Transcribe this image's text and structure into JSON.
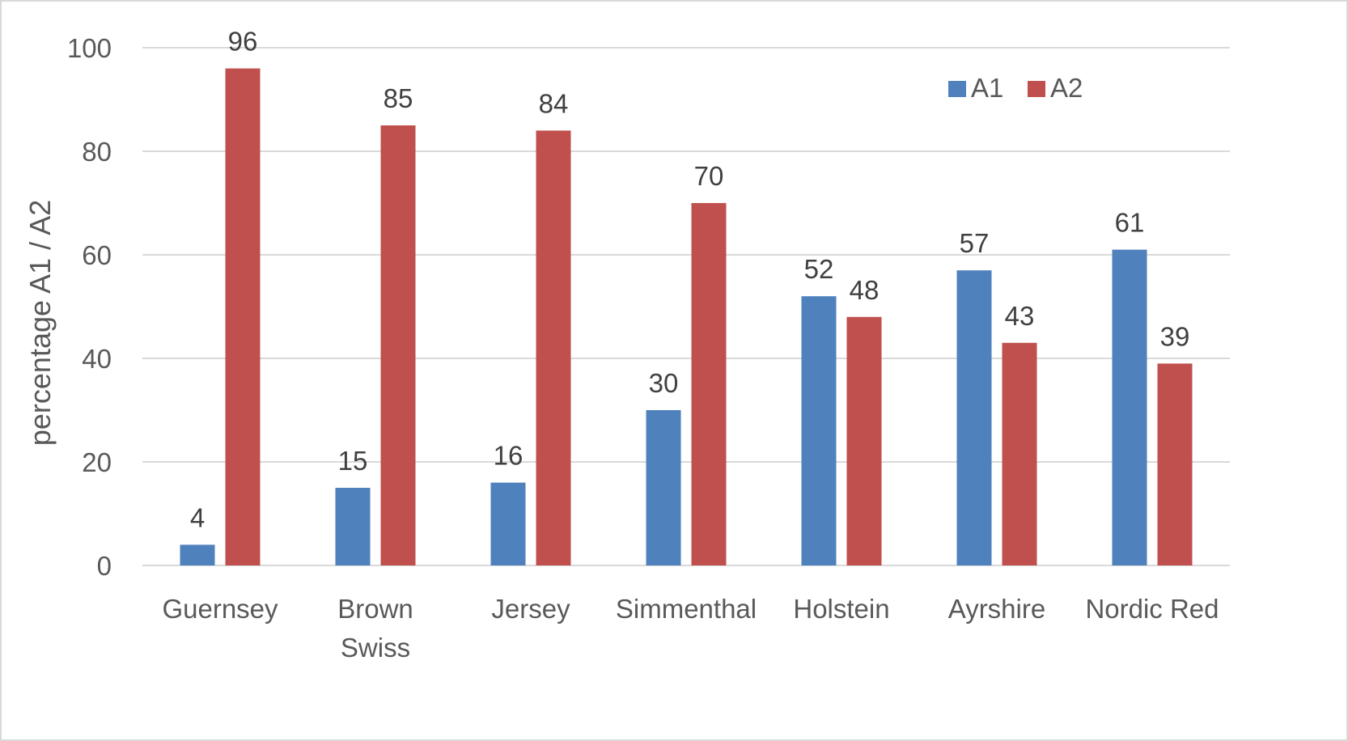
{
  "chart_data": {
    "type": "bar",
    "title": "",
    "xlabel": "",
    "ylabel": "percentage A1 / A2",
    "ylim": [
      0,
      100
    ],
    "yticks": [
      0,
      20,
      40,
      60,
      80,
      100
    ],
    "grid": true,
    "legend_position": "top-right",
    "categories": [
      [
        "Guernsey"
      ],
      [
        "Brown",
        "Swiss"
      ],
      [
        "Jersey"
      ],
      [
        "Simmenthal"
      ],
      [
        "Holstein"
      ],
      [
        "Ayrshire"
      ],
      [
        "Nordic Red"
      ]
    ],
    "series": [
      {
        "name": "A1",
        "color": "#4f81bd",
        "values": [
          4,
          15,
          16,
          30,
          52,
          57,
          61
        ]
      },
      {
        "name": "A2",
        "color": "#c0504d",
        "values": [
          96,
          85,
          84,
          70,
          48,
          43,
          39
        ]
      }
    ]
  }
}
